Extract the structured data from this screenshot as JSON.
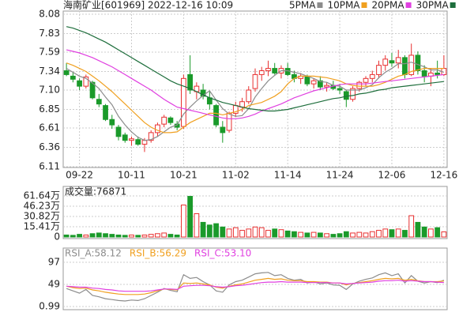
{
  "chart_data": [
    {
      "type": "candlestick",
      "title": "海南矿业[601969] 2022-12-16 10:09",
      "categories": [
        null,
        null,
        "09-22",
        null,
        null,
        null,
        null,
        null,
        null,
        null,
        "10-11",
        null,
        null,
        null,
        null,
        null,
        null,
        null,
        "10-21",
        null,
        null,
        null,
        null,
        null,
        null,
        null,
        "11-02",
        null,
        null,
        null,
        null,
        null,
        null,
        null,
        "11-14",
        null,
        null,
        null,
        null,
        null,
        null,
        null,
        "11-24",
        null,
        null,
        null,
        null,
        null,
        null,
        null,
        "12-06",
        null,
        null,
        null,
        null,
        null,
        null,
        null,
        "12-16"
      ],
      "open": [
        7.35,
        7.28,
        7.22,
        7.15,
        7.2,
        6.98,
        6.9,
        6.72,
        6.62,
        6.52,
        6.45,
        6.46,
        6.4,
        6.45,
        6.55,
        6.66,
        6.74,
        6.66,
        6.63,
        7.3,
        7.08,
        7.1,
        7.0,
        6.9,
        6.62,
        6.58,
        6.8,
        6.88,
        6.95,
        7.12,
        7.3,
        7.35,
        7.38,
        7.32,
        7.38,
        7.3,
        7.25,
        7.28,
        7.18,
        7.22,
        7.14,
        7.16,
        7.12,
        7.08,
        6.98,
        7.12,
        7.2,
        7.25,
        7.3,
        7.42,
        7.48,
        7.45,
        7.52,
        7.3,
        7.55,
        7.35,
        7.28,
        7.32,
        7.3
      ],
      "high": [
        7.45,
        7.33,
        7.25,
        7.3,
        7.22,
        7.05,
        6.92,
        6.78,
        6.65,
        6.55,
        6.5,
        6.5,
        6.48,
        6.58,
        6.68,
        6.78,
        6.76,
        6.7,
        7.3,
        7.55,
        7.2,
        7.18,
        7.08,
        6.92,
        6.7,
        6.82,
        6.95,
        7.0,
        7.15,
        7.38,
        7.4,
        7.48,
        7.45,
        7.42,
        7.45,
        7.35,
        7.32,
        7.3,
        7.25,
        7.28,
        7.2,
        7.22,
        7.18,
        7.1,
        7.15,
        7.22,
        7.28,
        7.35,
        7.48,
        7.55,
        7.58,
        7.62,
        7.55,
        7.7,
        7.6,
        7.42,
        7.38,
        7.48,
        7.55
      ],
      "low": [
        7.28,
        7.2,
        7.1,
        7.12,
        6.98,
        6.88,
        6.7,
        6.6,
        6.45,
        6.42,
        6.38,
        6.38,
        6.3,
        6.42,
        6.5,
        6.62,
        6.65,
        6.58,
        6.6,
        7.05,
        6.98,
        6.98,
        6.85,
        6.62,
        6.42,
        6.55,
        6.75,
        6.82,
        6.92,
        7.08,
        7.22,
        7.28,
        7.3,
        7.25,
        7.28,
        7.2,
        7.18,
        7.15,
        7.12,
        7.1,
        7.08,
        7.1,
        7.05,
        6.88,
        6.95,
        7.08,
        7.15,
        7.2,
        7.25,
        7.35,
        7.4,
        7.38,
        7.25,
        7.28,
        7.3,
        7.2,
        7.15,
        7.25,
        7.28
      ],
      "close": [
        7.3,
        7.24,
        7.15,
        7.27,
        7.0,
        6.92,
        6.72,
        6.65,
        6.5,
        6.45,
        6.47,
        6.4,
        6.45,
        6.55,
        6.65,
        6.75,
        6.68,
        6.62,
        7.25,
        7.1,
        7.15,
        7.02,
        6.92,
        6.65,
        6.55,
        6.8,
        6.9,
        6.95,
        7.1,
        7.3,
        7.35,
        7.38,
        7.32,
        7.38,
        7.3,
        7.25,
        7.28,
        7.18,
        7.22,
        7.14,
        7.16,
        7.12,
        7.1,
        6.98,
        7.12,
        7.2,
        7.25,
        7.3,
        7.42,
        7.5,
        7.45,
        7.52,
        7.3,
        7.55,
        7.35,
        7.28,
        7.32,
        7.3,
        7.38
      ],
      "series": [
        {
          "name": "5PMA",
          "color": "#8c8c8c",
          "values": [
            7.38,
            7.33,
            7.28,
            7.25,
            7.19,
            7.12,
            7.01,
            6.91,
            6.76,
            6.65,
            6.56,
            6.49,
            6.45,
            6.46,
            6.5,
            6.56,
            6.62,
            6.65,
            6.79,
            6.88,
            6.96,
            7.03,
            7.09,
            6.97,
            6.86,
            6.79,
            6.76,
            6.77,
            6.86,
            7.01,
            7.12,
            7.22,
            7.29,
            7.35,
            7.35,
            7.33,
            7.31,
            7.28,
            7.25,
            7.21,
            7.2,
            7.16,
            7.15,
            7.1,
            7.1,
            7.1,
            7.13,
            7.17,
            7.26,
            7.33,
            7.38,
            7.44,
            7.44,
            7.46,
            7.43,
            7.4,
            7.36,
            7.36,
            7.33
          ]
        },
        {
          "name": "10PMA",
          "color": "#f0a020",
          "values": [
            7.45,
            7.42,
            7.38,
            7.34,
            7.28,
            7.22,
            7.15,
            7.08,
            7.0,
            6.92,
            6.84,
            6.76,
            6.68,
            6.62,
            6.58,
            6.55,
            6.55,
            6.56,
            6.62,
            6.68,
            6.72,
            6.76,
            6.8,
            6.8,
            6.78,
            6.8,
            6.82,
            6.85,
            6.9,
            6.92,
            6.94,
            6.98,
            7.02,
            7.08,
            7.18,
            7.25,
            7.28,
            7.28,
            7.28,
            7.27,
            7.26,
            7.24,
            7.22,
            7.18,
            7.16,
            7.15,
            7.15,
            7.15,
            7.17,
            7.2,
            7.24,
            7.28,
            7.3,
            7.34,
            7.36,
            7.38,
            7.38,
            7.38,
            7.38
          ]
        },
        {
          "name": "20PMA",
          "color": "#e040e0",
          "values": [
            7.62,
            7.6,
            7.58,
            7.55,
            7.52,
            7.48,
            7.44,
            7.4,
            7.35,
            7.3,
            7.25,
            7.2,
            7.15,
            7.1,
            7.04,
            6.98,
            6.93,
            6.88,
            6.86,
            6.84,
            6.82,
            6.8,
            6.78,
            6.76,
            6.74,
            6.73,
            6.73,
            6.74,
            6.76,
            6.79,
            6.83,
            6.86,
            6.89,
            6.92,
            6.96,
            7.0,
            7.03,
            7.06,
            7.09,
            7.11,
            7.13,
            7.15,
            7.17,
            7.18,
            7.18,
            7.18,
            7.18,
            7.19,
            7.2,
            7.21,
            7.22,
            7.23,
            7.24,
            7.25,
            7.26,
            7.27,
            7.28,
            7.29,
            7.3
          ]
        },
        {
          "name": "30PMA",
          "color": "#1e6e3c",
          "values": [
            7.92,
            7.9,
            7.87,
            7.84,
            7.8,
            7.76,
            7.72,
            7.67,
            7.62,
            7.57,
            7.52,
            7.47,
            7.42,
            7.37,
            7.32,
            7.27,
            7.22,
            7.18,
            7.15,
            7.12,
            7.08,
            7.04,
            7.0,
            6.97,
            6.94,
            6.92,
            6.9,
            6.88,
            6.86,
            6.85,
            6.84,
            6.83,
            6.83,
            6.84,
            6.85,
            6.87,
            6.89,
            6.91,
            6.93,
            6.95,
            6.97,
            6.99,
            7.0,
            7.02,
            7.03,
            7.05,
            7.06,
            7.08,
            7.1,
            7.11,
            7.13,
            7.14,
            7.15,
            7.16,
            7.17,
            7.18,
            7.19,
            7.2,
            7.21
          ]
        }
      ],
      "up_color": "#e83030",
      "down_color": "#1a9a2a",
      "ylim": [
        6.11,
        8.08
      ],
      "yticks": [
        6.11,
        6.36,
        6.61,
        6.85,
        {
          "value": 7.1,
          "label": "7.10"
        },
        7.34,
        7.59,
        7.83,
        8.08
      ],
      "grid": true
    },
    {
      "type": "bar",
      "title": "成交量:76871",
      "values": [
        3,
        2.5,
        4,
        3,
        5,
        6,
        5,
        4,
        3,
        2.5,
        3,
        2.5,
        3,
        4,
        5,
        6,
        4,
        3,
        48,
        61,
        35,
        22,
        18,
        20,
        15,
        12,
        14,
        10,
        12,
        15,
        14,
        10,
        12,
        11,
        9,
        8,
        7,
        6,
        7,
        6,
        5,
        4,
        5,
        8,
        6,
        7,
        6,
        8,
        10,
        12,
        11,
        12,
        10,
        32,
        22,
        15,
        12,
        14,
        7.69
      ],
      "ylim": [
        0,
        61.64
      ],
      "yticks": [
        0,
        {
          "value": 15.41,
          "label": "15.41万"
        },
        {
          "value": 30.82,
          "label": "30.82万"
        },
        {
          "value": 46.23,
          "label": "46.23万"
        },
        {
          "value": 61.64,
          "label": "61.64万"
        }
      ],
      "grid": true
    },
    {
      "type": "line",
      "series": [
        {
          "name": "RSI_A:58.12",
          "color": "#8c8c8c",
          "values": [
            40,
            35,
            30,
            38,
            25,
            22,
            18,
            16,
            14,
            13,
            15,
            14,
            18,
            25,
            32,
            40,
            36,
            33,
            70,
            62,
            64,
            55,
            48,
            35,
            32,
            48,
            55,
            58,
            65,
            72,
            74,
            75,
            68,
            70,
            62,
            58,
            60,
            52,
            55,
            50,
            52,
            48,
            47,
            38,
            50,
            56,
            60,
            63,
            70,
            74,
            68,
            72,
            52,
            68,
            56,
            52,
            55,
            53,
            58.12
          ]
        },
        {
          "name": "RSI_B:56.29",
          "color": "#f0a020",
          "values": [
            45,
            42,
            40,
            41,
            37,
            35,
            32,
            30,
            28,
            27,
            27,
            27,
            28,
            31,
            35,
            39,
            38,
            37,
            52,
            51,
            52,
            50,
            48,
            43,
            41,
            45,
            48,
            50,
            54,
            58,
            60,
            62,
            60,
            61,
            58,
            57,
            57,
            55,
            55,
            54,
            54,
            52,
            52,
            48,
            51,
            53,
            55,
            57,
            60,
            62,
            61,
            62,
            58,
            60,
            57,
            55,
            55,
            55,
            56.29
          ]
        },
        {
          "name": "RSI_C:53.10",
          "color": "#e040e0",
          "values": [
            45,
            44,
            43,
            43,
            41,
            40,
            38,
            37,
            35,
            34,
            34,
            34,
            34,
            35,
            37,
            39,
            39,
            38,
            45,
            46,
            47,
            47,
            46,
            44,
            43,
            44,
            46,
            47,
            49,
            51,
            53,
            54,
            54,
            55,
            54,
            54,
            54,
            53,
            53,
            53,
            53,
            52,
            52,
            50,
            51,
            52,
            53,
            54,
            56,
            57,
            57,
            58,
            56,
            57,
            56,
            55,
            55,
            54,
            53.1
          ]
        }
      ],
      "ylim": [
        0.99,
        97
      ],
      "yticks": [
        0.99,
        49,
        97
      ],
      "grid": true
    }
  ]
}
